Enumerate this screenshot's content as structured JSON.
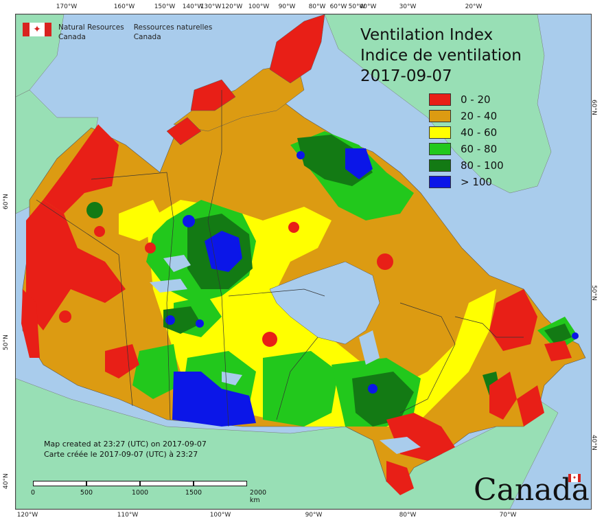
{
  "agency": {
    "name_en_line1": "Natural Resources",
    "name_en_line2": "Canada",
    "name_fr_line1": "Ressources naturelles",
    "name_fr_line2": "Canada",
    "flag_icon": "canada-flag-icon"
  },
  "title": {
    "line1": "Ventilation Index",
    "line2": "Indice de ventilation",
    "date": "2017-09-07"
  },
  "legend": [
    {
      "label": "0 - 20",
      "color": "#e81f17"
    },
    {
      "label": "20 - 40",
      "color": "#dc9b12"
    },
    {
      "label": "40 - 60",
      "color": "#ffff00"
    },
    {
      "label": "60 - 80",
      "color": "#22c81c"
    },
    {
      "label": "80 - 100",
      "color": "#137a14"
    },
    {
      "label": "> 100",
      "color": "#0b16e8"
    }
  ],
  "colors": {
    "ocean": "#a9ccec",
    "foreign_land": "#98dfb5",
    "border": "#333333"
  },
  "axes": {
    "top_lon": [
      "170°W",
      "160°W",
      "150°W",
      "140°W",
      "130°W",
      "120°W",
      "100°W",
      "90°W",
      "80°W",
      "60°W",
      "50°W",
      "40°W",
      "30°W",
      "20°W"
    ],
    "bottom_lon": [
      "120°W",
      "110°W",
      "100°W",
      "90°W",
      "80°W",
      "70°W"
    ],
    "left_lat": [
      "60°N",
      "50°N",
      "40°N"
    ],
    "right_lat": [
      "60°N",
      "50°N",
      "40°N"
    ]
  },
  "credit": {
    "line_en": "Map created at 23:27 (UTC) on 2017-09-07",
    "line_fr": "Carte créée le 2017-09-07 (UTC) à 23:27"
  },
  "scalebar": {
    "labels": [
      "0",
      "500",
      "1000",
      "1500",
      "2000  km"
    ]
  },
  "wordmark": "Canada"
}
